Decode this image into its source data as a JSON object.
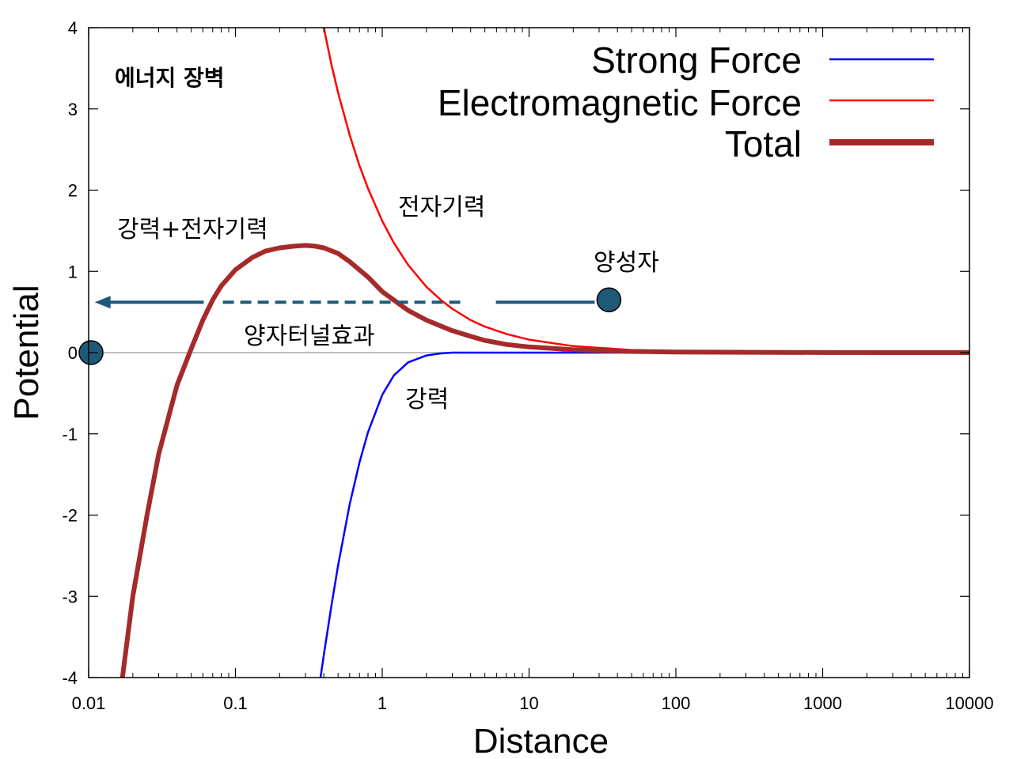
{
  "chart_data": {
    "type": "line",
    "xscale": "log",
    "xlim": [
      0.01,
      10000
    ],
    "ylim": [
      -4,
      4
    ],
    "xlabel": "Distance",
    "ylabel": "Potential",
    "x_ticks": [
      "0.01",
      "0.1",
      "1",
      "10",
      "100",
      "1000",
      "10000"
    ],
    "y_ticks": [
      "-4",
      "-3",
      "-2",
      "-1",
      "0",
      "1",
      "2",
      "3",
      "4"
    ],
    "grid": false,
    "legend_position": "top-right",
    "series": [
      {
        "name": "Strong Force",
        "color": "#0000ff",
        "x": [
          0.38,
          0.4,
          0.45,
          0.5,
          0.6,
          0.7,
          0.8,
          1.0,
          1.2,
          1.5,
          2.0,
          2.5,
          3.0,
          4.0,
          6.0,
          10,
          100,
          1000,
          10000
        ],
        "y": [
          -4.0,
          -3.72,
          -3.12,
          -2.62,
          -1.87,
          -1.35,
          -0.98,
          -0.52,
          -0.28,
          -0.12,
          -0.035,
          -0.01,
          0.0,
          0.0,
          0.0,
          0.0,
          0.0,
          0.0,
          0.0
        ]
      },
      {
        "name": "Electromagnetic Force",
        "color": "#ff0000",
        "x": [
          0.4,
          0.45,
          0.5,
          0.6,
          0.7,
          0.8,
          1.0,
          1.2,
          1.5,
          2.0,
          2.5,
          3.0,
          4.0,
          5.0,
          7.0,
          10,
          20,
          50,
          100,
          1000,
          10000
        ],
        "y": [
          4.0,
          3.55,
          3.2,
          2.68,
          2.3,
          2.02,
          1.62,
          1.35,
          1.08,
          0.81,
          0.65,
          0.54,
          0.4,
          0.32,
          0.23,
          0.16,
          0.08,
          0.032,
          0.016,
          0.002,
          0.0
        ]
      },
      {
        "name": "Total",
        "color": "#a52a2a",
        "x": [
          0.017,
          0.02,
          0.025,
          0.03,
          0.04,
          0.05,
          0.06,
          0.07,
          0.08,
          0.1,
          0.13,
          0.16,
          0.2,
          0.25,
          0.3,
          0.35,
          0.4,
          0.5,
          0.6,
          0.8,
          1.0,
          1.5,
          2.0,
          3.0,
          4.0,
          5.0,
          7.0,
          10,
          20,
          50,
          100,
          1000,
          10000
        ],
        "y": [
          -4.0,
          -3.0,
          -2.0,
          -1.25,
          -0.4,
          0.05,
          0.4,
          0.65,
          0.82,
          1.02,
          1.17,
          1.25,
          1.29,
          1.31,
          1.32,
          1.31,
          1.29,
          1.22,
          1.12,
          0.93,
          0.75,
          0.52,
          0.4,
          0.27,
          0.2,
          0.15,
          0.1,
          0.07,
          0.035,
          0.015,
          0.008,
          0.001,
          0.0
        ]
      }
    ],
    "baseline": {
      "y": 0,
      "color": "#aaaaaa"
    },
    "annotations": {
      "barrier_title": "에너지 장벽",
      "strong_plus_em": "강력+전자기력",
      "em_label": "전자기력",
      "proton_label": "양성자",
      "tunneling_label": "양자터널효과",
      "strong_label": "강력"
    },
    "markers": {
      "proton": {
        "x": 35,
        "y": 0.65,
        "color": "#1e5a78"
      },
      "tunneled": {
        "x": 0.01,
        "y": 0.0,
        "color": "#1e5a78"
      }
    },
    "tunneling_arrow": {
      "from_x": 28,
      "to_x": 0.011,
      "y": 0.62,
      "color": "#1e5a78"
    }
  }
}
